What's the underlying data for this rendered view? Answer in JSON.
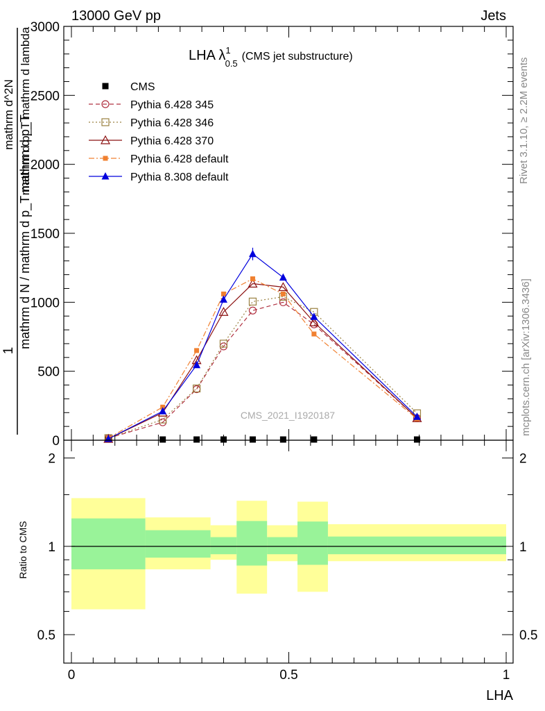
{
  "header": {
    "left": "13000 GeV pp",
    "right": "Jets"
  },
  "side_labels": {
    "rivet": "Rivet 3.1.10, ≥ 2.2M events",
    "mcplots": "mcplots.cern.ch [arXiv:1306.3436]"
  },
  "watermark": "CMS_2021_I1920187",
  "chart_data": [
    {
      "type": "line",
      "title": "LHA λ^1_0.5 (CMS jet substructure)",
      "title_main": "LHA λ",
      "title_sup": "1",
      "title_sub": "0.5",
      "title_suffix": "(CMS jet substructure)",
      "ylabel_numerator": "1",
      "ylabel_denominator": "mathrm d N / mathrm d p_T mathrm d p_T",
      "ylabel_numerator2": "mathrm d^2N",
      "ylabel_denominator2": "mathrm d p_T mathrm d lambda",
      "ylim": [
        0,
        3000
      ],
      "xlim": [
        0,
        1
      ],
      "yticks": [
        0,
        500,
        1000,
        1500,
        2000,
        2500,
        3000
      ],
      "legend_position": "top-left",
      "grid": false,
      "series": [
        {
          "name": "CMS",
          "color": "#000000",
          "marker": "filled-square",
          "x": [
            0.085,
            0.21,
            0.288,
            0.35,
            0.417,
            0.487,
            0.558,
            0.795
          ],
          "y": [
            0,
            0,
            0,
            0,
            0,
            0,
            0,
            0
          ]
        },
        {
          "name": "Pythia 6.428 345",
          "color": "#b03040",
          "marker": "open-circle",
          "dash": "dashed",
          "x": [
            0.085,
            0.21,
            0.288,
            0.35,
            0.417,
            0.487,
            0.558,
            0.795
          ],
          "y": [
            15,
            130,
            370,
            680,
            940,
            1000,
            840,
            160
          ]
        },
        {
          "name": "Pythia 6.428 346",
          "color": "#9a8040",
          "marker": "open-square",
          "dash": "dotted",
          "x": [
            0.085,
            0.21,
            0.288,
            0.35,
            0.417,
            0.487,
            0.558,
            0.795
          ],
          "y": [
            15,
            150,
            375,
            700,
            1005,
            1040,
            930,
            195
          ]
        },
        {
          "name": "Pythia 6.428 370",
          "color": "#8b1010",
          "marker": "open-triangle",
          "dash": "solid",
          "x": [
            0.085,
            0.21,
            0.288,
            0.35,
            0.417,
            0.487,
            0.558,
            0.795
          ],
          "y": [
            10,
            200,
            580,
            930,
            1135,
            1110,
            855,
            160
          ]
        },
        {
          "name": "Pythia 6.428 default",
          "color": "#f08030",
          "marker": "filled-square-small",
          "dash": "dashdot",
          "x": [
            0.085,
            0.21,
            0.288,
            0.35,
            0.417,
            0.487,
            0.558,
            0.795
          ],
          "y": [
            15,
            240,
            650,
            1060,
            1170,
            1060,
            770,
            155
          ]
        },
        {
          "name": "Pythia 8.308 default",
          "color": "#0000dd",
          "marker": "filled-triangle",
          "dash": "solid",
          "x": [
            0.085,
            0.21,
            0.288,
            0.35,
            0.417,
            0.487,
            0.558,
            0.795
          ],
          "y": [
            10,
            210,
            545,
            1020,
            1350,
            1180,
            895,
            170
          ]
        }
      ]
    },
    {
      "type": "area",
      "ylabel": "Ratio to CMS",
      "xlabel": "LHA",
      "xlim": [
        0,
        1
      ],
      "ylim": [
        0.4,
        2.3
      ],
      "log_y": true,
      "yticks": [
        0.5,
        1,
        2
      ],
      "xticks": [
        0,
        0.5,
        1
      ],
      "xtick_labels": [
        "0",
        "0.5",
        "1"
      ],
      "yellow_color": "#ffff99",
      "green_color": "#99f399",
      "reference_line": 1,
      "bins": [
        {
          "x0": 0.0,
          "x1": 0.17,
          "outer": [
            0.61,
            1.46
          ],
          "inner": [
            0.835,
            1.245
          ]
        },
        {
          "x0": 0.17,
          "x1": 0.32,
          "outer": [
            0.835,
            1.255
          ],
          "inner": [
            0.915,
            1.135
          ]
        },
        {
          "x0": 0.32,
          "x1": 0.38,
          "outer": [
            0.9,
            1.18
          ],
          "inner": [
            0.94,
            1.075
          ]
        },
        {
          "x0": 0.38,
          "x1": 0.45,
          "outer": [
            0.69,
            1.43
          ],
          "inner": [
            0.86,
            1.22
          ]
        },
        {
          "x0": 0.45,
          "x1": 0.52,
          "outer": [
            0.89,
            1.18
          ],
          "inner": [
            0.94,
            1.075
          ]
        },
        {
          "x0": 0.52,
          "x1": 0.59,
          "outer": [
            0.7,
            1.42
          ],
          "inner": [
            0.865,
            1.215
          ]
        },
        {
          "x0": 0.59,
          "x1": 1.0,
          "outer": [
            0.89,
            1.19
          ],
          "inner": [
            0.94,
            1.08
          ]
        }
      ]
    }
  ]
}
